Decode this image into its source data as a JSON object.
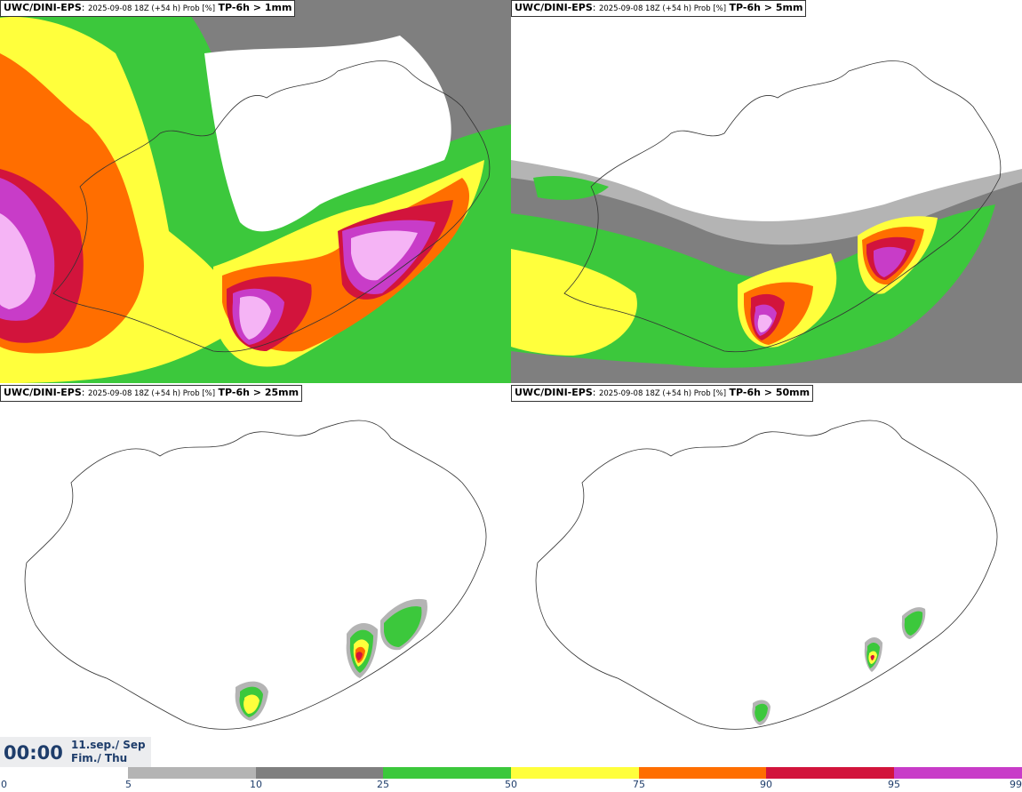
{
  "panels": [
    {
      "model": "UWC/DINI-EPS",
      "run": "2025-09-08 18Z (+54 h) Prob [%]",
      "variable": "TP-6h > 1mm"
    },
    {
      "model": "UWC/DINI-EPS",
      "run": "2025-09-08 18Z (+54 h) Prob [%]",
      "variable": "TP-6h > 5mm"
    },
    {
      "model": "UWC/DINI-EPS",
      "run": "2025-09-08 18Z (+54 h) Prob [%]",
      "variable": "TP-6h > 25mm"
    },
    {
      "model": "UWC/DINI-EPS",
      "run": "2025-09-08 18Z (+54 h) Prob [%]",
      "variable": "TP-6h > 50mm"
    }
  ],
  "time": {
    "hour": "00:00",
    "date": "11.sep./ Sep",
    "day": "Fim./ Thu"
  },
  "colorbar": {
    "ticks": [
      "0",
      "5",
      "10",
      "25",
      "50",
      "75",
      "90",
      "95",
      "99"
    ],
    "colors": [
      "#b4b4b4",
      "#7f7f7f",
      "#3cc83c",
      "#ffff3c",
      "#ff6e00",
      "#d2143c",
      "#c83cc8",
      "#f5b4f5"
    ]
  }
}
